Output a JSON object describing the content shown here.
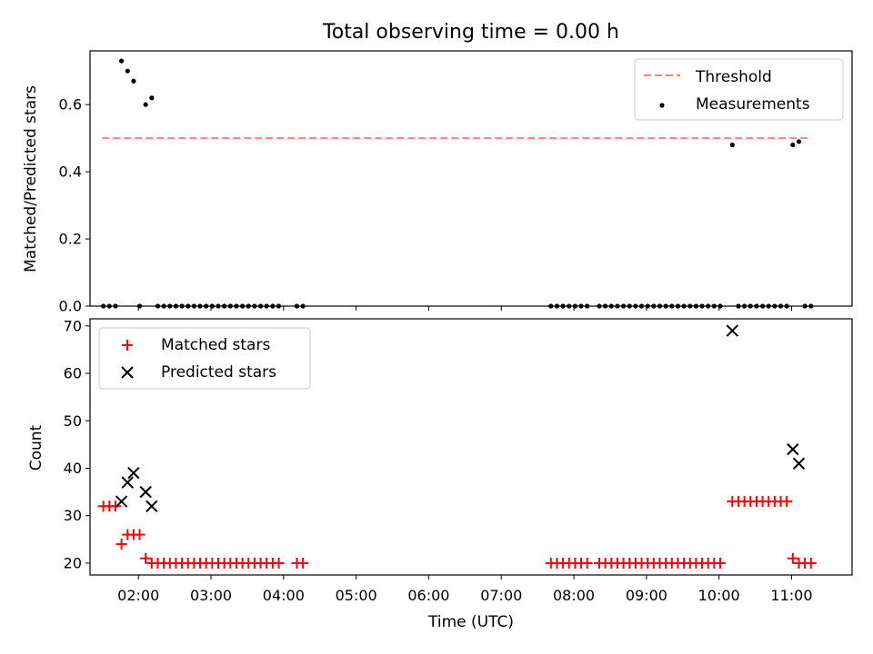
{
  "chart_data": [
    {
      "type": "scatter",
      "title": "Total observing time = 0.00 h",
      "xlabel": "",
      "ylabel": "Matched/Predicted stars",
      "xlim": [
        "01:20",
        "11:50"
      ],
      "ylim": [
        0,
        0.76
      ],
      "yticks": [
        "0.0",
        "0.2",
        "0.4",
        "0.6"
      ],
      "legend_position": "upper right",
      "series": [
        {
          "name": "Threshold",
          "kind": "dashed-line",
          "color": "#ff7f7f",
          "x": [
            "01:30",
            "11:15"
          ],
          "y": [
            0.5,
            0.5
          ]
        },
        {
          "name": "Measurements",
          "kind": "dots",
          "color": "#000000",
          "x": [
            "01:31",
            "01:36",
            "01:41",
            "01:46",
            "01:51",
            "01:56",
            "02:01",
            "02:06",
            "02:11",
            "02:16",
            "02:21",
            "02:26",
            "02:31",
            "02:36",
            "02:41",
            "02:46",
            "02:51",
            "02:56",
            "03:01",
            "03:06",
            "03:11",
            "03:16",
            "03:21",
            "03:26",
            "03:31",
            "03:36",
            "03:41",
            "03:46",
            "03:51",
            "03:56",
            "04:11",
            "04:16",
            "07:41",
            "07:46",
            "07:51",
            "07:56",
            "08:01",
            "08:06",
            "08:11",
            "08:21",
            "08:26",
            "08:31",
            "08:36",
            "08:41",
            "08:46",
            "08:51",
            "08:56",
            "09:01",
            "09:06",
            "09:11",
            "09:16",
            "09:21",
            "09:26",
            "09:31",
            "09:36",
            "09:41",
            "09:46",
            "09:51",
            "09:56",
            "10:01",
            "10:11",
            "10:16",
            "10:21",
            "10:26",
            "10:31",
            "10:36",
            "10:41",
            "10:46",
            "10:51",
            "10:56",
            "11:01",
            "11:06",
            "11:11",
            "11:16"
          ],
          "y": [
            0,
            0,
            0,
            0.73,
            0.7,
            0.67,
            0,
            0.6,
            0.62,
            0,
            0,
            0,
            0,
            0,
            0,
            0,
            0,
            0,
            0,
            0,
            0,
            0,
            0,
            0,
            0,
            0,
            0,
            0,
            0,
            0,
            0,
            0,
            0,
            0,
            0,
            0,
            0,
            0,
            0,
            0,
            0,
            0,
            0,
            0,
            0,
            0,
            0,
            0,
            0,
            0,
            0,
            0,
            0,
            0,
            0,
            0,
            0,
            0,
            0,
            0,
            0.48,
            0,
            0,
            0,
            0,
            0,
            0,
            0,
            0,
            0,
            0.48,
            0.49,
            0,
            0
          ]
        }
      ]
    },
    {
      "type": "scatter",
      "title": "",
      "xlabel": "Time (UTC)",
      "ylabel": "Count",
      "xlim": [
        "01:20",
        "11:50"
      ],
      "ylim": [
        17.5,
        71.5
      ],
      "yticks": [
        "20",
        "30",
        "40",
        "50",
        "60",
        "70"
      ],
      "xticks": [
        "02:00",
        "03:00",
        "04:00",
        "05:00",
        "06:00",
        "07:00",
        "08:00",
        "09:00",
        "10:00",
        "11:00"
      ],
      "legend_position": "upper left",
      "series": [
        {
          "name": "Matched stars",
          "marker": "+",
          "color": "#ff0000",
          "x": [
            "01:31",
            "01:36",
            "01:41",
            "01:46",
            "01:51",
            "01:56",
            "02:01",
            "02:06",
            "02:11",
            "02:16",
            "02:21",
            "02:26",
            "02:31",
            "02:36",
            "02:41",
            "02:46",
            "02:51",
            "02:56",
            "03:01",
            "03:06",
            "03:11",
            "03:16",
            "03:21",
            "03:26",
            "03:31",
            "03:36",
            "03:41",
            "03:46",
            "03:51",
            "03:56",
            "04:11",
            "04:16",
            "07:41",
            "07:46",
            "07:51",
            "07:56",
            "08:01",
            "08:06",
            "08:11",
            "08:21",
            "08:26",
            "08:31",
            "08:36",
            "08:41",
            "08:46",
            "08:51",
            "08:56",
            "09:01",
            "09:06",
            "09:11",
            "09:16",
            "09:21",
            "09:26",
            "09:31",
            "09:36",
            "09:41",
            "09:46",
            "09:51",
            "09:56",
            "10:01",
            "10:11",
            "10:16",
            "10:21",
            "10:26",
            "10:31",
            "10:36",
            "10:41",
            "10:46",
            "10:51",
            "10:56",
            "11:01",
            "11:06",
            "11:11",
            "11:16"
          ],
          "y": [
            32,
            32,
            32,
            24,
            26,
            26,
            26,
            21,
            20,
            20,
            20,
            20,
            20,
            20,
            20,
            20,
            20,
            20,
            20,
            20,
            20,
            20,
            20,
            20,
            20,
            20,
            20,
            20,
            20,
            20,
            20,
            20,
            20,
            20,
            20,
            20,
            20,
            20,
            20,
            20,
            20,
            20,
            20,
            20,
            20,
            20,
            20,
            20,
            20,
            20,
            20,
            20,
            20,
            20,
            20,
            20,
            20,
            20,
            20,
            20,
            33,
            33,
            33,
            33,
            33,
            33,
            33,
            33,
            33,
            33,
            21,
            20,
            20,
            20
          ]
        },
        {
          "name": "Predicted stars",
          "marker": "x",
          "color": "#000000",
          "x": [
            "01:46",
            "01:51",
            "01:56",
            "02:06",
            "02:11",
            "10:11",
            "11:01",
            "11:06"
          ],
          "y": [
            33,
            37,
            39,
            35,
            32,
            69,
            44,
            41
          ]
        }
      ]
    }
  ]
}
